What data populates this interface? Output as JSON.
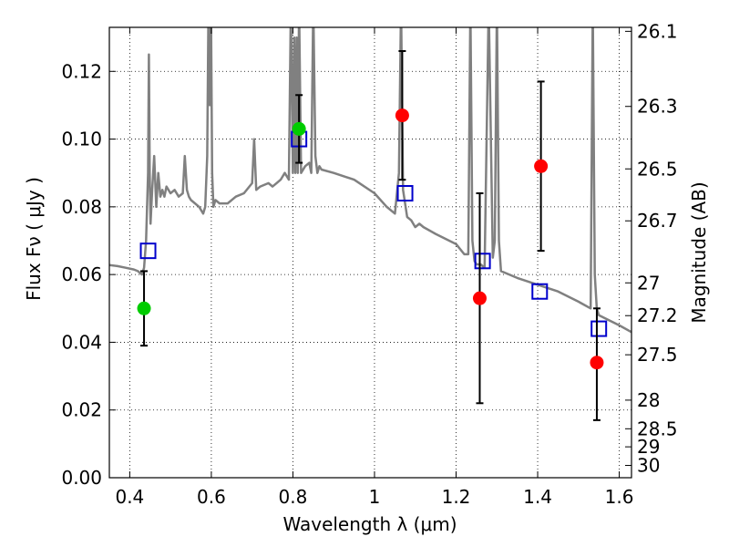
{
  "chart_data": {
    "type": "scatter",
    "xlabel": "Wavelength  λ (μm)",
    "ylabel": "Flux  Fν  ( μJy )",
    "ylabel_right": "Magnitude (AB)",
    "xlim": [
      0.35,
      1.63
    ],
    "ylim": [
      0.0,
      0.133
    ],
    "grid": true,
    "x_ticks": [
      0.4,
      0.6,
      0.8,
      1.0,
      1.2,
      1.4,
      1.6
    ],
    "x_tick_labels": [
      "0.4",
      "0.6",
      "0.8",
      "1",
      "1.2",
      "1.4",
      "1.6"
    ],
    "y_ticks": [
      0.0,
      0.02,
      0.04,
      0.06,
      0.08,
      0.1,
      0.12
    ],
    "y_tick_labels": [
      "0.00",
      "0.02",
      "0.04",
      "0.06",
      "0.08",
      "0.10",
      "0.12"
    ],
    "right_ticks": [
      26.1,
      26.3,
      26.5,
      26.7,
      27,
      27.2,
      27.5,
      28,
      28.5,
      29,
      30
    ],
    "right_tick_labels": [
      "26.1",
      "26.3",
      "26.5",
      "26.7",
      "27",
      "27.2",
      "27.5",
      "28",
      "28.5",
      "29",
      "30"
    ],
    "series": [
      {
        "kind": "line",
        "color": "#808080",
        "x": [
          0.35,
          0.37,
          0.39,
          0.41,
          0.42,
          0.43,
          0.435,
          0.44,
          0.445,
          0.447,
          0.449,
          0.451,
          0.455,
          0.46,
          0.465,
          0.47,
          0.475,
          0.48,
          0.485,
          0.49,
          0.5,
          0.51,
          0.52,
          0.53,
          0.535,
          0.54,
          0.545,
          0.55,
          0.56,
          0.57,
          0.58,
          0.585,
          0.59,
          0.593,
          0.596,
          0.599,
          0.602,
          0.605,
          0.61,
          0.62,
          0.64,
          0.66,
          0.68,
          0.7,
          0.705,
          0.71,
          0.72,
          0.74,
          0.75,
          0.76,
          0.77,
          0.78,
          0.79,
          0.795,
          0.8,
          0.803,
          0.806,
          0.809,
          0.812,
          0.815,
          0.82,
          0.83,
          0.84,
          0.845,
          0.85,
          0.855,
          0.86,
          0.865,
          0.87,
          0.9,
          0.95,
          1.0,
          1.03,
          1.05,
          1.06,
          1.065,
          1.07,
          1.08,
          1.09,
          1.1,
          1.11,
          1.12,
          1.15,
          1.2,
          1.22,
          1.23,
          1.235,
          1.24,
          1.245,
          1.25,
          1.26,
          1.27,
          1.28,
          1.29,
          1.295,
          1.3,
          1.305,
          1.31,
          1.35,
          1.4,
          1.45,
          1.5,
          1.53,
          1.535,
          1.54,
          1.545,
          1.55,
          1.6,
          1.63
        ],
        "y": [
          0.0628,
          0.0625,
          0.062,
          0.0615,
          0.061,
          0.06,
          0.062,
          0.07,
          0.09,
          0.125,
          0.09,
          0.075,
          0.085,
          0.095,
          0.08,
          0.09,
          0.083,
          0.085,
          0.083,
          0.086,
          0.084,
          0.085,
          0.083,
          0.084,
          0.095,
          0.085,
          0.083,
          0.082,
          0.081,
          0.08,
          0.078,
          0.08,
          0.095,
          0.14,
          0.11,
          0.14,
          0.09,
          0.08,
          0.082,
          0.081,
          0.081,
          0.083,
          0.084,
          0.087,
          0.1,
          0.085,
          0.086,
          0.087,
          0.086,
          0.087,
          0.088,
          0.09,
          0.088,
          0.14,
          0.09,
          0.13,
          0.09,
          0.13,
          0.09,
          0.14,
          0.09,
          0.092,
          0.093,
          0.09,
          0.14,
          0.095,
          0.09,
          0.092,
          0.091,
          0.09,
          0.088,
          0.084,
          0.08,
          0.078,
          0.09,
          0.14,
          0.085,
          0.077,
          0.076,
          0.074,
          0.075,
          0.074,
          0.072,
          0.069,
          0.066,
          0.066,
          0.14,
          0.07,
          0.064,
          0.063,
          0.063,
          0.062,
          0.14,
          0.065,
          0.07,
          0.14,
          0.07,
          0.061,
          0.059,
          0.057,
          0.055,
          0.052,
          0.05,
          0.14,
          0.06,
          0.05,
          0.048,
          0.045,
          0.043
        ]
      },
      {
        "kind": "open-squares",
        "color": "#0000cc",
        "x": [
          0.445,
          0.815,
          1.075,
          1.265,
          1.405,
          1.55
        ],
        "y": [
          0.067,
          0.1,
          0.084,
          0.064,
          0.055,
          0.044
        ]
      },
      {
        "kind": "filled-circles",
        "color": "#00cc00",
        "x": [
          0.435,
          0.815
        ],
        "y": [
          0.05,
          0.103
        ],
        "err_low": [
          0.039,
          0.093
        ],
        "err_high": [
          0.061,
          0.113
        ]
      },
      {
        "kind": "filled-circles",
        "color": "#ff0000",
        "x": [
          1.068,
          1.258,
          1.408,
          1.545
        ],
        "y": [
          0.107,
          0.053,
          0.092,
          0.034
        ],
        "err_low": [
          0.088,
          0.022,
          0.067,
          0.017
        ],
        "err_high": [
          0.126,
          0.084,
          0.117,
          0.05
        ]
      }
    ]
  }
}
